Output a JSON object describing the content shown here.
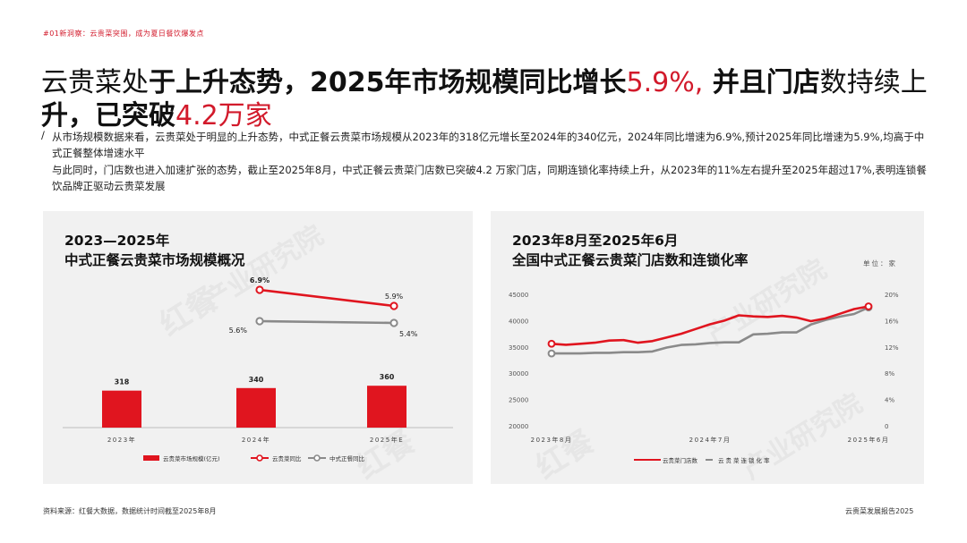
{
  "header": {
    "tag": "#01新洞察：云贵菜突围，成为夏日餐饮爆发点",
    "headline": {
      "part1": "云贵菜处",
      "part2": "于上升态势，2025年市场规模同比增长",
      "part3": "5.9%,",
      "part4": "并且门店",
      "part5": "数持续上升，已突破",
      "part6": "4.2万家"
    },
    "para1_slash": "/",
    "para1": "从市场规模数据来看，云贵菜处于明显的上升态势，中式正餐云贵菜市场规模从2023年的318亿元增长至2024年的340亿元，2024年同比增速为6.9%,预计2025年同比增速为5.9%,均高于中式正餐整体增速水平",
    "para2": "与此同时，门店数也进入加速扩张的态势，截止至2025年8月，中式正餐云贵菜门店数已突破4.2 万家门店，同期连锁化率持续上升，从2023年的11%左右提升至2025年超过17%,表明连锁餐饮品牌正驱动云贵菜发展"
  },
  "left_panel": {
    "title_line1": "2023—2025年",
    "title_line2": "中式正餐云贵菜市场规模概况",
    "watermark_logo": "红餐",
    "watermark_text": "产业研究院"
  },
  "right_panel": {
    "title_line1": "2023年8月至2025年6月",
    "title_line2": "全国中式正餐云贵菜门店数和连锁化率",
    "unit": "单位：家",
    "watermark_logo": "红餐",
    "watermark_text": "产业研究院"
  },
  "chart_data": [
    {
      "type": "bar",
      "categories": [
        "2023年",
        "2024年",
        "2025年E"
      ],
      "series": [
        {
          "name": "云贵菜市场规模(亿元)",
          "values": [
            318,
            340,
            360
          ],
          "color": "#e0151f"
        },
        {
          "name": "云贵菜同比",
          "values": [
            null,
            6.9,
            5.9
          ],
          "labels": [
            "",
            "6.9%",
            "5.9%"
          ],
          "color": "#e0151f"
        },
        {
          "name": "中式正餐同比",
          "values": [
            null,
            5.6,
            5.4
          ],
          "labels": [
            "",
            "5.6%",
            "5.4%"
          ],
          "color": "#8a8a8a"
        }
      ],
      "legend": [
        "云贵菜市场规模(亿元)",
        "云贵菜同比",
        "中式正餐同比"
      ]
    },
    {
      "type": "line",
      "x_ticks": [
        "2023年8月",
        "2024年7月",
        "2025年6月"
      ],
      "y_left_ticks": [
        "45000",
        "40000",
        "35000",
        "30000",
        "25000",
        "20000"
      ],
      "y_left_range": [
        20000,
        45000
      ],
      "y_right_ticks": [
        "20%",
        "16%",
        "12%",
        "8%",
        "4%",
        "0"
      ],
      "y_right_range": [
        0,
        20
      ],
      "series": [
        {
          "name": "云贵菜门店数",
          "axis": "left",
          "color": "#e0151f",
          "values": [
            35600,
            35400,
            35600,
            35800,
            36200,
            36300,
            35800,
            36100,
            36800,
            37500,
            38400,
            39300,
            40000,
            41000,
            40800,
            40700,
            40900,
            40600,
            39900,
            40400,
            41300,
            42200,
            42700
          ]
        },
        {
          "name": "云贵菜连锁化率",
          "axis": "right",
          "color": "#8a8a8a",
          "values": [
            11.0,
            11.0,
            11.0,
            11.1,
            11.1,
            11.2,
            11.2,
            11.3,
            11.9,
            12.3,
            12.4,
            12.6,
            12.7,
            12.7,
            13.9,
            14.0,
            14.2,
            14.2,
            15.4,
            16.1,
            16.6,
            17.0,
            18.0
          ]
        }
      ],
      "legend": [
        "云贵菜门店数",
        "云贵菜连锁化率"
      ]
    }
  ],
  "footer": {
    "source": "资料来源：红餐大数据，数据统计时间截至2025年8月",
    "report": "云贵菜发展报告2025"
  }
}
